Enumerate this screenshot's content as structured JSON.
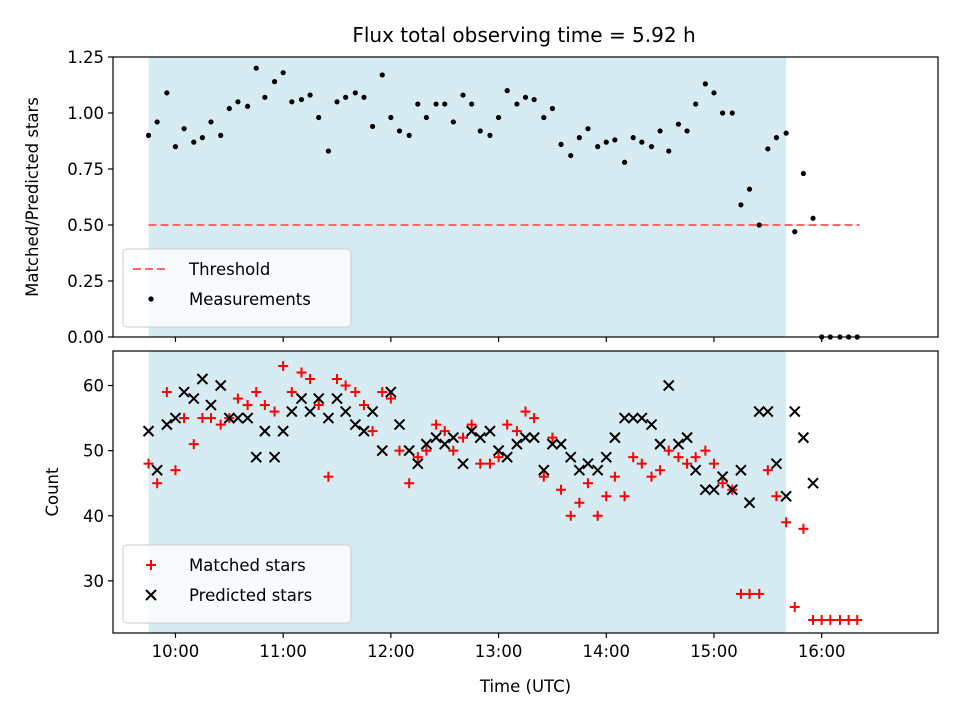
{
  "figure": {
    "title": "Flux total observing time = 5.92 h"
  },
  "chart_data": [
    {
      "type": "scatter",
      "ylabel": "Matched/Predicted stars",
      "xlabel": "",
      "xlim": [
        9.42,
        17.08
      ],
      "ylim": [
        0.0,
        1.25
      ],
      "yticks": [
        0.0,
        0.25,
        0.5,
        0.75,
        1.0,
        1.25
      ],
      "ytick_labels": [
        "0.00",
        "0.25",
        "0.50",
        "0.75",
        "1.00",
        "1.25"
      ],
      "xticks": [
        10,
        11,
        12,
        13,
        14,
        15,
        16
      ],
      "xtick_labels": [
        "",
        "",
        "",
        "",
        "",
        "",
        ""
      ],
      "observing_window": [
        9.75,
        15.67
      ],
      "observing_window_color": "#add8e6",
      "threshold": {
        "name": "Threshold",
        "y": 0.5,
        "x_range": [
          9.75,
          16.35
        ],
        "color": "#ff6666"
      },
      "legend": {
        "placement": "lower-left",
        "entries": [
          "Threshold",
          "Measurements"
        ]
      },
      "series": [
        {
          "name": "Measurements",
          "color": "#000000",
          "marker": "dot",
          "points": [
            [
              9.75,
              0.9
            ],
            [
              9.83,
              0.96
            ],
            [
              9.92,
              1.09
            ],
            [
              10.0,
              0.85
            ],
            [
              10.08,
              0.93
            ],
            [
              10.17,
              0.87
            ],
            [
              10.25,
              0.89
            ],
            [
              10.33,
              0.96
            ],
            [
              10.42,
              0.9
            ],
            [
              10.5,
              1.02
            ],
            [
              10.58,
              1.05
            ],
            [
              10.67,
              1.03
            ],
            [
              10.75,
              1.2
            ],
            [
              10.83,
              1.07
            ],
            [
              10.92,
              1.14
            ],
            [
              11.0,
              1.18
            ],
            [
              11.08,
              1.05
            ],
            [
              11.17,
              1.06
            ],
            [
              11.25,
              1.08
            ],
            [
              11.33,
              0.98
            ],
            [
              11.42,
              0.83
            ],
            [
              11.5,
              1.05
            ],
            [
              11.58,
              1.07
            ],
            [
              11.67,
              1.09
            ],
            [
              11.75,
              1.07
            ],
            [
              11.83,
              0.94
            ],
            [
              11.92,
              1.17
            ],
            [
              12.0,
              0.98
            ],
            [
              12.08,
              0.92
            ],
            [
              12.17,
              0.9
            ],
            [
              12.25,
              1.04
            ],
            [
              12.33,
              0.98
            ],
            [
              12.42,
              1.04
            ],
            [
              12.5,
              1.04
            ],
            [
              12.58,
              0.96
            ],
            [
              12.67,
              1.08
            ],
            [
              12.75,
              1.04
            ],
            [
              12.83,
              0.92
            ],
            [
              12.92,
              0.9
            ],
            [
              13.0,
              0.98
            ],
            [
              13.08,
              1.1
            ],
            [
              13.17,
              1.04
            ],
            [
              13.25,
              1.07
            ],
            [
              13.33,
              1.06
            ],
            [
              13.42,
              0.98
            ],
            [
              13.5,
              1.02
            ],
            [
              13.58,
              0.86
            ],
            [
              13.67,
              0.81
            ],
            [
              13.75,
              0.89
            ],
            [
              13.83,
              0.93
            ],
            [
              13.92,
              0.85
            ],
            [
              14.0,
              0.87
            ],
            [
              14.08,
              0.88
            ],
            [
              14.17,
              0.78
            ],
            [
              14.25,
              0.89
            ],
            [
              14.33,
              0.87
            ],
            [
              14.42,
              0.85
            ],
            [
              14.5,
              0.92
            ],
            [
              14.58,
              0.83
            ],
            [
              14.67,
              0.95
            ],
            [
              14.75,
              0.92
            ],
            [
              14.83,
              1.04
            ],
            [
              14.92,
              1.13
            ],
            [
              15.0,
              1.09
            ],
            [
              15.08,
              1.0
            ],
            [
              15.17,
              1.0
            ],
            [
              15.25,
              0.59
            ],
            [
              15.33,
              0.66
            ],
            [
              15.42,
              0.5
            ],
            [
              15.5,
              0.84
            ],
            [
              15.58,
              0.89
            ],
            [
              15.67,
              0.91
            ],
            [
              15.75,
              0.47
            ],
            [
              15.83,
              0.73
            ],
            [
              15.92,
              0.53
            ],
            [
              16.0,
              0.0
            ],
            [
              16.08,
              0.0
            ],
            [
              16.17,
              0.0
            ],
            [
              16.25,
              0.0
            ],
            [
              16.33,
              0.0
            ]
          ]
        }
      ]
    },
    {
      "type": "scatter",
      "ylabel": "Count",
      "xlabel": "Time (UTC)",
      "xlim": [
        9.42,
        17.08
      ],
      "ylim": [
        22,
        65.3
      ],
      "yticks": [
        30,
        40,
        50,
        60
      ],
      "ytick_labels": [
        "30",
        "40",
        "50",
        "60"
      ],
      "xticks": [
        10,
        11,
        12,
        13,
        14,
        15,
        16
      ],
      "xtick_labels": [
        "10:00",
        "11:00",
        "12:00",
        "13:00",
        "14:00",
        "15:00",
        "16:00"
      ],
      "observing_window": [
        9.75,
        15.67
      ],
      "observing_window_color": "#add8e6",
      "legend": {
        "placement": "lower-left",
        "entries": [
          "Matched stars",
          "Predicted stars"
        ]
      },
      "series": [
        {
          "name": "Matched stars",
          "color": "#ff0000",
          "marker": "plus",
          "points": [
            [
              9.75,
              48
            ],
            [
              9.83,
              45
            ],
            [
              9.92,
              59
            ],
            [
              10.0,
              47
            ],
            [
              10.08,
              55
            ],
            [
              10.17,
              51
            ],
            [
              10.25,
              55
            ],
            [
              10.33,
              55
            ],
            [
              10.42,
              54
            ],
            [
              10.5,
              55
            ],
            [
              10.58,
              58
            ],
            [
              10.67,
              57
            ],
            [
              10.75,
              59
            ],
            [
              10.83,
              57
            ],
            [
              10.92,
              56
            ],
            [
              11.0,
              63
            ],
            [
              11.08,
              59
            ],
            [
              11.17,
              62
            ],
            [
              11.25,
              61
            ],
            [
              11.33,
              57
            ],
            [
              11.42,
              46
            ],
            [
              11.5,
              61
            ],
            [
              11.58,
              60
            ],
            [
              11.67,
              59
            ],
            [
              11.75,
              57
            ],
            [
              11.83,
              53
            ],
            [
              11.92,
              59
            ],
            [
              12.0,
              58
            ],
            [
              12.08,
              50
            ],
            [
              12.17,
              45
            ],
            [
              12.25,
              49
            ],
            [
              12.33,
              50
            ],
            [
              12.42,
              54
            ],
            [
              12.5,
              53
            ],
            [
              12.58,
              50
            ],
            [
              12.67,
              52
            ],
            [
              12.75,
              54
            ],
            [
              12.83,
              48
            ],
            [
              12.92,
              48
            ],
            [
              13.0,
              49
            ],
            [
              13.08,
              54
            ],
            [
              13.17,
              53
            ],
            [
              13.25,
              56
            ],
            [
              13.33,
              55
            ],
            [
              13.42,
              46
            ],
            [
              13.5,
              52
            ],
            [
              13.58,
              44
            ],
            [
              13.67,
              40
            ],
            [
              13.75,
              42
            ],
            [
              13.83,
              45
            ],
            [
              13.92,
              40
            ],
            [
              14.0,
              43
            ],
            [
              14.08,
              46
            ],
            [
              14.17,
              43
            ],
            [
              14.25,
              49
            ],
            [
              14.33,
              48
            ],
            [
              14.42,
              46
            ],
            [
              14.5,
              47
            ],
            [
              14.58,
              50
            ],
            [
              14.67,
              49
            ],
            [
              14.75,
              48
            ],
            [
              14.83,
              49
            ],
            [
              14.92,
              50
            ],
            [
              15.0,
              48
            ],
            [
              15.08,
              45
            ],
            [
              15.17,
              44
            ],
            [
              15.25,
              28
            ],
            [
              15.33,
              28
            ],
            [
              15.42,
              28
            ],
            [
              15.5,
              47
            ],
            [
              15.58,
              43
            ],
            [
              15.67,
              39
            ],
            [
              15.75,
              26
            ],
            [
              15.83,
              38
            ],
            [
              15.92,
              24
            ],
            [
              16.0,
              24
            ],
            [
              16.08,
              24
            ],
            [
              16.17,
              24
            ],
            [
              16.25,
              24
            ],
            [
              16.33,
              24
            ]
          ]
        },
        {
          "name": "Predicted stars",
          "color": "#000000",
          "marker": "x",
          "points": [
            [
              9.75,
              53
            ],
            [
              9.83,
              47
            ],
            [
              9.92,
              54
            ],
            [
              10.0,
              55
            ],
            [
              10.08,
              59
            ],
            [
              10.17,
              58
            ],
            [
              10.25,
              61
            ],
            [
              10.33,
              57
            ],
            [
              10.42,
              60
            ],
            [
              10.5,
              55
            ],
            [
              10.58,
              55
            ],
            [
              10.67,
              55
            ],
            [
              10.75,
              49
            ],
            [
              10.83,
              53
            ],
            [
              10.92,
              49
            ],
            [
              11.0,
              53
            ],
            [
              11.08,
              56
            ],
            [
              11.17,
              58
            ],
            [
              11.25,
              56
            ],
            [
              11.33,
              58
            ],
            [
              11.42,
              55
            ],
            [
              11.5,
              58
            ],
            [
              11.58,
              56
            ],
            [
              11.67,
              54
            ],
            [
              11.75,
              53
            ],
            [
              11.83,
              56
            ],
            [
              11.92,
              50
            ],
            [
              12.0,
              59
            ],
            [
              12.08,
              54
            ],
            [
              12.17,
              50
            ],
            [
              12.25,
              48
            ],
            [
              12.33,
              51
            ],
            [
              12.42,
              52
            ],
            [
              12.5,
              51
            ],
            [
              12.58,
              52
            ],
            [
              12.67,
              48
            ],
            [
              12.75,
              53
            ],
            [
              12.83,
              52
            ],
            [
              12.92,
              53
            ],
            [
              13.0,
              50
            ],
            [
              13.08,
              49
            ],
            [
              13.17,
              51
            ],
            [
              13.25,
              52
            ],
            [
              13.33,
              52
            ],
            [
              13.42,
              47
            ],
            [
              13.5,
              51
            ],
            [
              13.58,
              51
            ],
            [
              13.67,
              49
            ],
            [
              13.75,
              47
            ],
            [
              13.83,
              48
            ],
            [
              13.92,
              47
            ],
            [
              14.0,
              49
            ],
            [
              14.08,
              52
            ],
            [
              14.17,
              55
            ],
            [
              14.25,
              55
            ],
            [
              14.33,
              55
            ],
            [
              14.42,
              54
            ],
            [
              14.5,
              51
            ],
            [
              14.58,
              60
            ],
            [
              14.67,
              51
            ],
            [
              14.75,
              52
            ],
            [
              14.83,
              47
            ],
            [
              14.92,
              44
            ],
            [
              15.0,
              44
            ],
            [
              15.08,
              46
            ],
            [
              15.17,
              44
            ],
            [
              15.25,
              47
            ],
            [
              15.33,
              42
            ],
            [
              15.42,
              56
            ],
            [
              15.5,
              56
            ],
            [
              15.58,
              48
            ],
            [
              15.67,
              43
            ],
            [
              15.75,
              56
            ],
            [
              15.83,
              52
            ],
            [
              15.92,
              45
            ]
          ]
        }
      ]
    }
  ]
}
